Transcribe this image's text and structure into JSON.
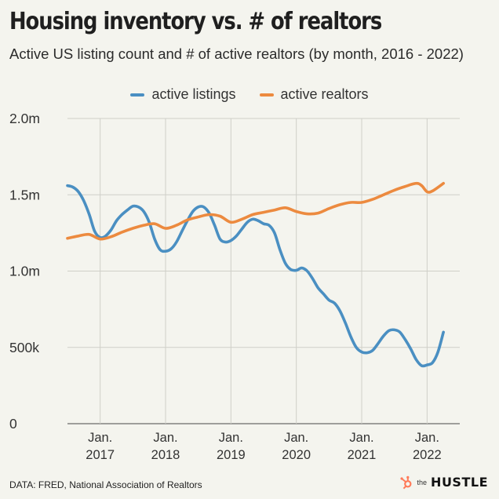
{
  "title": "Housing inventory vs. # of realtors",
  "subtitle": "Active US listing count and # of active realtors (by month, 2016 - 2022)",
  "footer": {
    "source": "DATA: FRED, National Association of Realtors",
    "brand_prefix": "the",
    "brand_name": "HUSTLE"
  },
  "chart_data": {
    "type": "line",
    "x_start": "2016-07",
    "x_end": "2022-07",
    "x_ticks": [
      {
        "date": "2017-01",
        "label1": "Jan.",
        "label2": "2017"
      },
      {
        "date": "2018-01",
        "label1": "Jan.",
        "label2": "2018"
      },
      {
        "date": "2019-01",
        "label1": "Jan.",
        "label2": "2019"
      },
      {
        "date": "2020-01",
        "label1": "Jan.",
        "label2": "2020"
      },
      {
        "date": "2021-01",
        "label1": "Jan.",
        "label2": "2021"
      },
      {
        "date": "2022-01",
        "label1": "Jan.",
        "label2": "2022"
      }
    ],
    "y_ticks": [
      {
        "value": 0,
        "label": "0"
      },
      {
        "value": 500000,
        "label": "500k"
      },
      {
        "value": 1000000,
        "label": "1.0m"
      },
      {
        "value": 1500000,
        "label": "1.5m"
      },
      {
        "value": 2000000,
        "label": "2.0m"
      }
    ],
    "ylim": [
      0,
      2000000
    ],
    "grid": true,
    "legend_position": "top",
    "series": [
      {
        "name": "active listings",
        "color": "#4a8fc2",
        "points": [
          [
            "2016-07",
            1560000
          ],
          [
            "2016-08",
            1550000
          ],
          [
            "2016-09",
            1520000
          ],
          [
            "2016-10",
            1460000
          ],
          [
            "2016-11",
            1370000
          ],
          [
            "2016-12",
            1260000
          ],
          [
            "2017-01",
            1220000
          ],
          [
            "2017-02",
            1230000
          ],
          [
            "2017-03",
            1270000
          ],
          [
            "2017-04",
            1330000
          ],
          [
            "2017-05",
            1370000
          ],
          [
            "2017-06",
            1400000
          ],
          [
            "2017-07",
            1425000
          ],
          [
            "2017-08",
            1420000
          ],
          [
            "2017-09",
            1390000
          ],
          [
            "2017-10",
            1320000
          ],
          [
            "2017-11",
            1210000
          ],
          [
            "2017-12",
            1140000
          ],
          [
            "2018-01",
            1130000
          ],
          [
            "2018-02",
            1145000
          ],
          [
            "2018-03",
            1190000
          ],
          [
            "2018-04",
            1260000
          ],
          [
            "2018-05",
            1330000
          ],
          [
            "2018-06",
            1390000
          ],
          [
            "2018-07",
            1420000
          ],
          [
            "2018-08",
            1420000
          ],
          [
            "2018-09",
            1380000
          ],
          [
            "2018-10",
            1300000
          ],
          [
            "2018-11",
            1210000
          ],
          [
            "2018-12",
            1190000
          ],
          [
            "2019-01",
            1200000
          ],
          [
            "2019-02",
            1230000
          ],
          [
            "2019-03",
            1275000
          ],
          [
            "2019-04",
            1320000
          ],
          [
            "2019-05",
            1340000
          ],
          [
            "2019-06",
            1330000
          ],
          [
            "2019-07",
            1310000
          ],
          [
            "2019-08",
            1300000
          ],
          [
            "2019-09",
            1250000
          ],
          [
            "2019-10",
            1140000
          ],
          [
            "2019-11",
            1050000
          ],
          [
            "2019-12",
            1010000
          ],
          [
            "2020-01",
            1005000
          ],
          [
            "2020-02",
            1020000
          ],
          [
            "2020-03",
            1000000
          ],
          [
            "2020-04",
            950000
          ],
          [
            "2020-05",
            890000
          ],
          [
            "2020-06",
            850000
          ],
          [
            "2020-07",
            810000
          ],
          [
            "2020-08",
            790000
          ],
          [
            "2020-09",
            740000
          ],
          [
            "2020-10",
            660000
          ],
          [
            "2020-11",
            570000
          ],
          [
            "2020-12",
            500000
          ],
          [
            "2021-01",
            470000
          ],
          [
            "2021-02",
            465000
          ],
          [
            "2021-03",
            480000
          ],
          [
            "2021-04",
            525000
          ],
          [
            "2021-05",
            575000
          ],
          [
            "2021-06",
            610000
          ],
          [
            "2021-07",
            615000
          ],
          [
            "2021-08",
            600000
          ],
          [
            "2021-09",
            550000
          ],
          [
            "2021-10",
            490000
          ],
          [
            "2021-11",
            420000
          ],
          [
            "2021-12",
            380000
          ],
          [
            "2022-01",
            385000
          ],
          [
            "2022-02",
            400000
          ],
          [
            "2022-03",
            470000
          ],
          [
            "2022-04",
            600000
          ]
        ]
      },
      {
        "name": "active realtors",
        "color": "#ec8a3f",
        "points": [
          [
            "2016-07",
            1215000
          ],
          [
            "2016-09",
            1230000
          ],
          [
            "2016-11",
            1240000
          ],
          [
            "2017-01",
            1210000
          ],
          [
            "2017-03",
            1225000
          ],
          [
            "2017-05",
            1255000
          ],
          [
            "2017-07",
            1280000
          ],
          [
            "2017-09",
            1300000
          ],
          [
            "2017-11",
            1310000
          ],
          [
            "2018-01",
            1280000
          ],
          [
            "2018-03",
            1300000
          ],
          [
            "2018-05",
            1335000
          ],
          [
            "2018-07",
            1355000
          ],
          [
            "2018-09",
            1370000
          ],
          [
            "2018-11",
            1360000
          ],
          [
            "2019-01",
            1320000
          ],
          [
            "2019-03",
            1340000
          ],
          [
            "2019-05",
            1370000
          ],
          [
            "2019-07",
            1385000
          ],
          [
            "2019-09",
            1400000
          ],
          [
            "2019-11",
            1415000
          ],
          [
            "2020-01",
            1390000
          ],
          [
            "2020-03",
            1375000
          ],
          [
            "2020-05",
            1380000
          ],
          [
            "2020-07",
            1410000
          ],
          [
            "2020-09",
            1435000
          ],
          [
            "2020-11",
            1450000
          ],
          [
            "2021-01",
            1450000
          ],
          [
            "2021-03",
            1470000
          ],
          [
            "2021-05",
            1500000
          ],
          [
            "2021-07",
            1530000
          ],
          [
            "2021-09",
            1555000
          ],
          [
            "2021-11",
            1575000
          ],
          [
            "2021-12",
            1560000
          ],
          [
            "2022-01",
            1520000
          ],
          [
            "2022-02",
            1525000
          ],
          [
            "2022-04",
            1575000
          ]
        ]
      }
    ]
  }
}
